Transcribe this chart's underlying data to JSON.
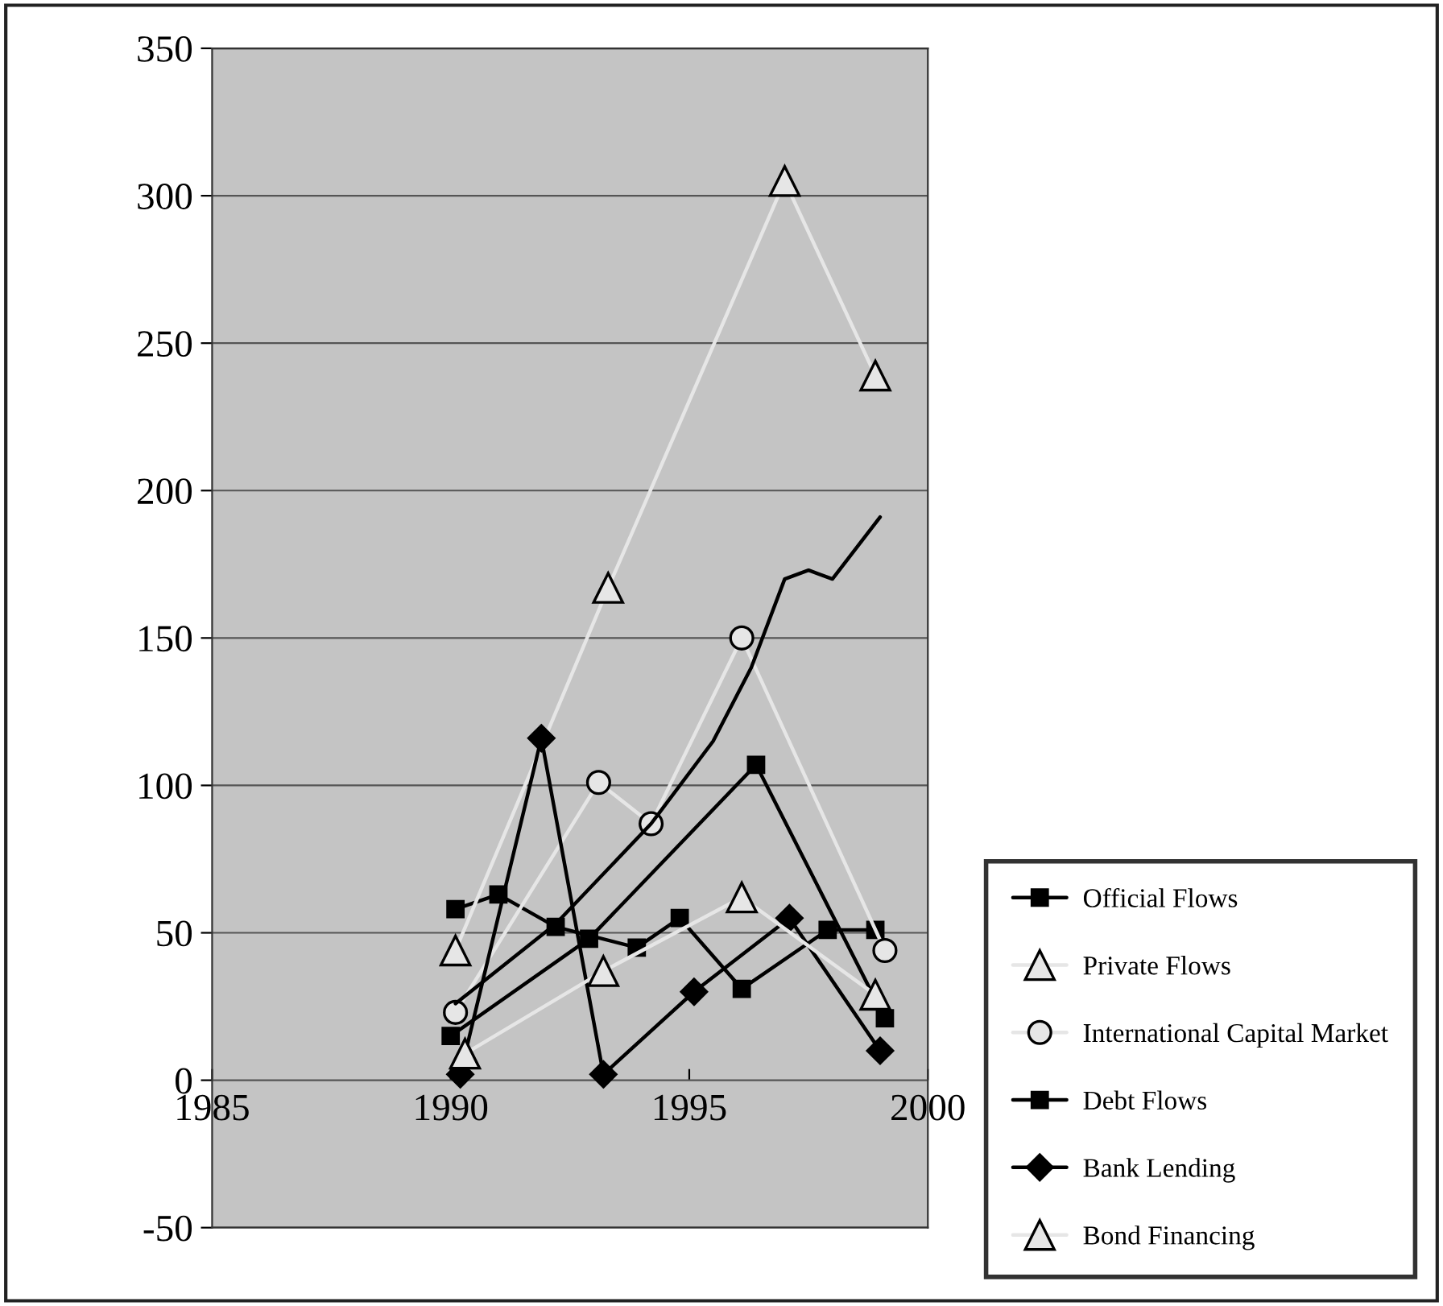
{
  "chart_data": {
    "type": "line",
    "xlim": [
      1985,
      2000
    ],
    "xticks": [
      1985,
      1990,
      1995,
      2000
    ],
    "ylim": [
      -50,
      350
    ],
    "yticks": [
      -50,
      0,
      50,
      100,
      150,
      200,
      250,
      300,
      350
    ],
    "grid": "y",
    "legend": "right",
    "series": [
      {
        "name": "Official Flows",
        "color": "#000000",
        "marker": "square",
        "x": [
          1990.1,
          1991.0,
          1992.2,
          1993.9,
          1994.8,
          1996.1,
          1997.9,
          1998.9
        ],
        "values": [
          58,
          63,
          52,
          45,
          55,
          31,
          51,
          51
        ]
      },
      {
        "name": "Private Flows",
        "color": "#e6e6e6",
        "marker": "triangle",
        "x": [
          1990.1,
          1993.3,
          1997.0,
          1998.9
        ],
        "values": [
          44,
          167,
          305,
          239
        ]
      },
      {
        "name": "International Capital Market",
        "color": "#e6e6e6",
        "marker": "circle",
        "x": [
          1990.1,
          1993.1,
          1994.2,
          1996.1,
          1999.1
        ],
        "values": [
          23,
          101,
          87,
          150,
          44
        ]
      },
      {
        "name": "Debt Flows",
        "color": "#000000",
        "marker": "square",
        "x": [
          1990.0,
          1992.9,
          1996.4,
          1999.1
        ],
        "values": [
          15,
          48,
          107,
          21
        ]
      },
      {
        "name": "Bank Lending",
        "color": "#000000",
        "marker": "diamond",
        "x": [
          1990.2,
          1991.9,
          1993.2,
          1995.1,
          1997.1,
          1999.0
        ],
        "values": [
          2,
          116,
          2,
          30,
          55,
          10
        ]
      },
      {
        "name": "Bond Financing",
        "color": "#e6e6e6",
        "marker": "triangle",
        "x": [
          1990.3,
          1993.2,
          1996.1,
          1998.9
        ],
        "values": [
          9,
          37,
          62,
          29
        ]
      },
      {
        "color": "#000000",
        "marker": "none",
        "x": [
          1990.1,
          1992.2,
          1994.2,
          1995.5,
          1996.3,
          1997.0,
          1997.5,
          1998.0,
          1999.0
        ],
        "values": [
          26,
          53,
          87,
          115,
          140,
          170,
          173,
          170,
          191
        ]
      }
    ]
  }
}
